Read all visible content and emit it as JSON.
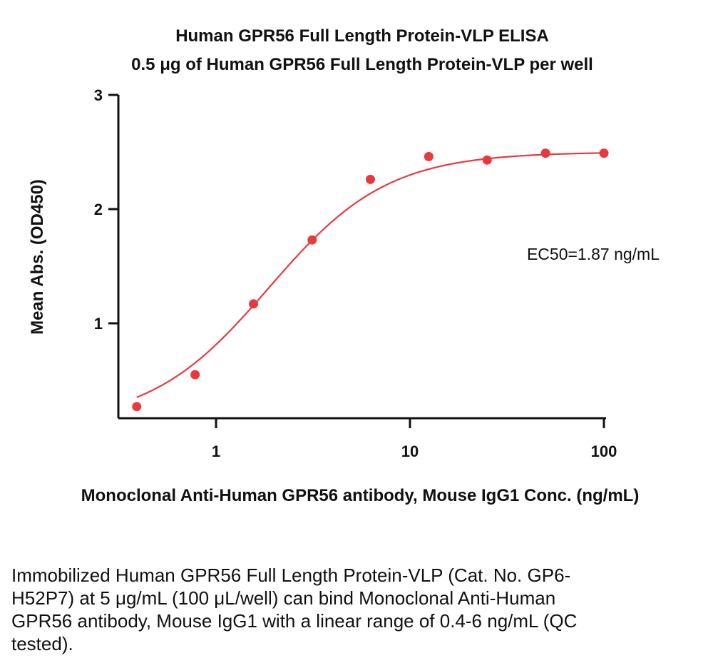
{
  "chart_data": {
    "type": "scatter",
    "title": "Human GPR56 Full Length Protein-VLP ELISA",
    "subtitle": "0.5 μg of Human GPR56 Full Length Protein-VLP per well",
    "xlabel": "Monoclonal Anti-Human GPR56 antibody, Mouse IgG1 Conc. (ng/mL)",
    "ylabel": "Mean Abs. (OD450)",
    "x_scale": "log",
    "xlim": [
      0.3,
      100
    ],
    "ylim": [
      0.0,
      3.0
    ],
    "x_ticks": [
      1,
      10,
      100
    ],
    "x_tick_labels": [
      "1",
      "10",
      "100"
    ],
    "y_ticks": [
      1,
      2,
      3
    ],
    "y_tick_labels": [
      "1",
      "2",
      "3"
    ],
    "grid": false,
    "legend": "none",
    "color": "#e8393f",
    "series": [
      {
        "x": [
          0.39,
          0.78,
          1.56,
          3.13,
          6.25,
          12.5,
          25,
          50,
          100
        ],
        "y": [
          0.27,
          0.55,
          1.17,
          1.73,
          2.26,
          2.46,
          2.43,
          2.49,
          2.49
        ]
      }
    ],
    "fit": {
      "type": "4PL",
      "bottom": 0.12,
      "top": 2.5,
      "ec50": 1.87,
      "hill": 1.42
    },
    "annotation": "EC50=1.87 ng/mL"
  },
  "caption": "Immobilized Human GPR56 Full Length Protein-VLP (Cat. No. GP6-H52P7) at 5 μg/mL (100 μL/well) can bind Monoclonal Anti-Human GPR56 antibody, Mouse IgG1 with a linear range of 0.4-6 ng/mL (QC tested)."
}
